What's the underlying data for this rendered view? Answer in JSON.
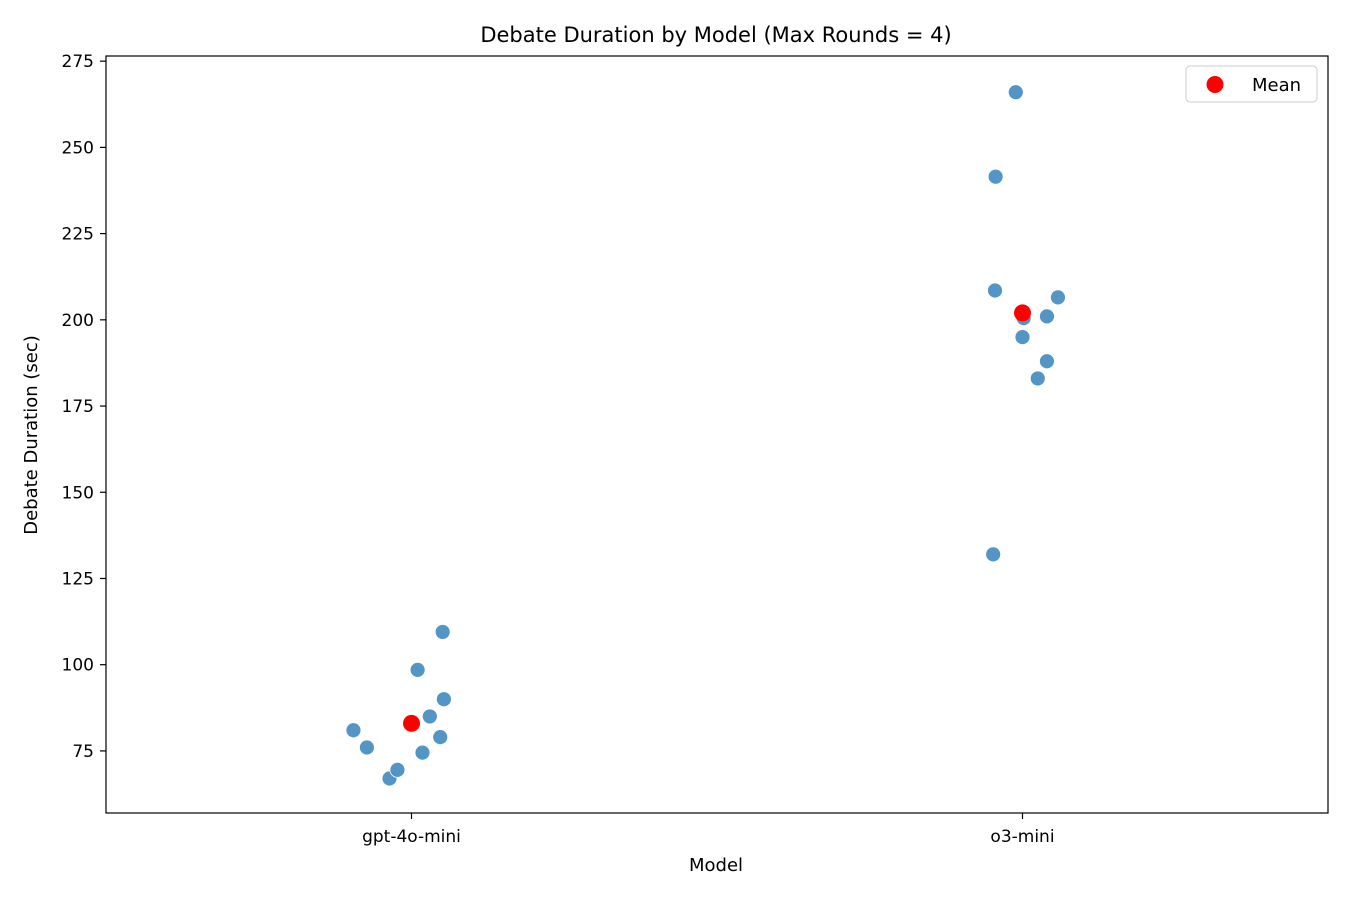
{
  "chart_data": {
    "type": "scatter",
    "title": "Debate Duration by Model (Max Rounds = 4)",
    "xlabel": "Model",
    "ylabel": "Debate Duration (sec)",
    "categories": [
      "gpt-4o-mini",
      "o3-mini"
    ],
    "ylim": [
      57,
      276.5
    ],
    "yticks": [
      75,
      100,
      125,
      150,
      175,
      200,
      225,
      250,
      275
    ],
    "grid": false,
    "legend_position": "top-right",
    "series": [
      {
        "category": "gpt-4o-mini",
        "color": "#4a8fc1",
        "points": [
          {
            "offset": -0.095,
            "y": 81
          },
          {
            "offset": -0.073,
            "y": 76
          },
          {
            "offset": -0.036,
            "y": 67
          },
          {
            "offset": -0.023,
            "y": 69.5
          },
          {
            "offset": 0.01,
            "y": 98.5
          },
          {
            "offset": 0.018,
            "y": 74.5
          },
          {
            "offset": 0.03,
            "y": 85
          },
          {
            "offset": 0.047,
            "y": 79
          },
          {
            "offset": 0.051,
            "y": 109.5
          },
          {
            "offset": 0.053,
            "y": 90
          }
        ]
      },
      {
        "category": "o3-mini",
        "color": "#4a8fc1",
        "points": [
          {
            "offset": -0.048,
            "y": 132
          },
          {
            "offset": -0.045,
            "y": 208.5
          },
          {
            "offset": -0.044,
            "y": 241.5
          },
          {
            "offset": -0.011,
            "y": 266
          },
          {
            "offset": 0.0,
            "y": 195
          },
          {
            "offset": 0.002,
            "y": 200.5
          },
          {
            "offset": 0.025,
            "y": 183
          },
          {
            "offset": 0.04,
            "y": 188
          },
          {
            "offset": 0.04,
            "y": 201
          },
          {
            "offset": 0.058,
            "y": 206.5
          }
        ]
      }
    ],
    "mean": {
      "label": "Mean",
      "color": "#ff0000",
      "values": [
        {
          "category": "gpt-4o-mini",
          "y": 83
        },
        {
          "category": "o3-mini",
          "y": 202
        }
      ]
    }
  }
}
